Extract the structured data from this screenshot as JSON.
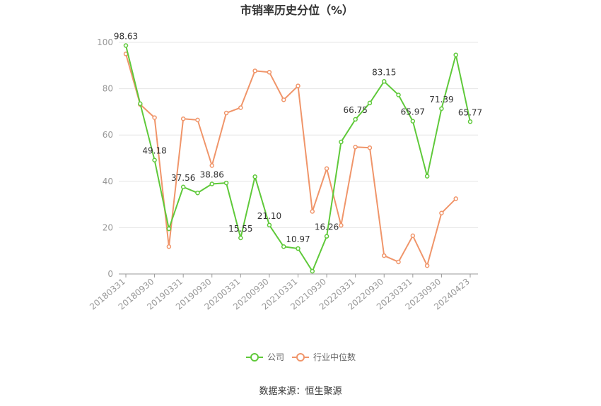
{
  "chart_data": {
    "type": "line",
    "title": "市销率历史分位（%）",
    "xlabel": "",
    "ylabel": "",
    "ylim": [
      0,
      100
    ],
    "yticks": [
      0,
      20,
      40,
      60,
      80,
      100
    ],
    "grid": true,
    "legend_position": "bottom",
    "x_tick_labels": [
      "20180331",
      "20180930",
      "20190331",
      "20190930",
      "20200331",
      "20200930",
      "20210331",
      "20210930",
      "20220331",
      "20220930",
      "20230331",
      "20230930",
      "20240423"
    ],
    "x_tick_indices": [
      0,
      2,
      4,
      6,
      8,
      10,
      12,
      14,
      16,
      18,
      20,
      22,
      24
    ],
    "series": [
      {
        "name": "公司",
        "color": "#5fc93a",
        "values": [
          98.63,
          73.5,
          49.18,
          19.5,
          37.56,
          35.0,
          38.86,
          39.3,
          15.55,
          42.0,
          21.1,
          11.8,
          10.97,
          1.2,
          16.26,
          57.0,
          66.75,
          73.8,
          83.15,
          77.3,
          65.97,
          42.2,
          71.39,
          94.6,
          65.77
        ],
        "labels": {
          "0": "98.63",
          "2": "49.18",
          "4": "37.56",
          "6": "38.86",
          "8": "15.55",
          "10": "21.10",
          "12": "10.97",
          "14": "16.26",
          "16": "66.75",
          "18": "83.15",
          "20": "65.97",
          "22": "71.39",
          "24": "65.77"
        }
      },
      {
        "name": "行业中位数",
        "color": "#f0956a",
        "values": [
          95.0,
          73.2,
          67.5,
          11.8,
          67.0,
          66.5,
          46.8,
          69.5,
          71.8,
          87.7,
          87.1,
          75.2,
          81.2,
          27.0,
          45.5,
          21.0,
          54.8,
          54.5,
          7.9,
          5.2,
          16.5,
          3.6,
          26.3,
          32.5,
          null
        ]
      }
    ]
  },
  "source": "数据来源：恒生聚源"
}
